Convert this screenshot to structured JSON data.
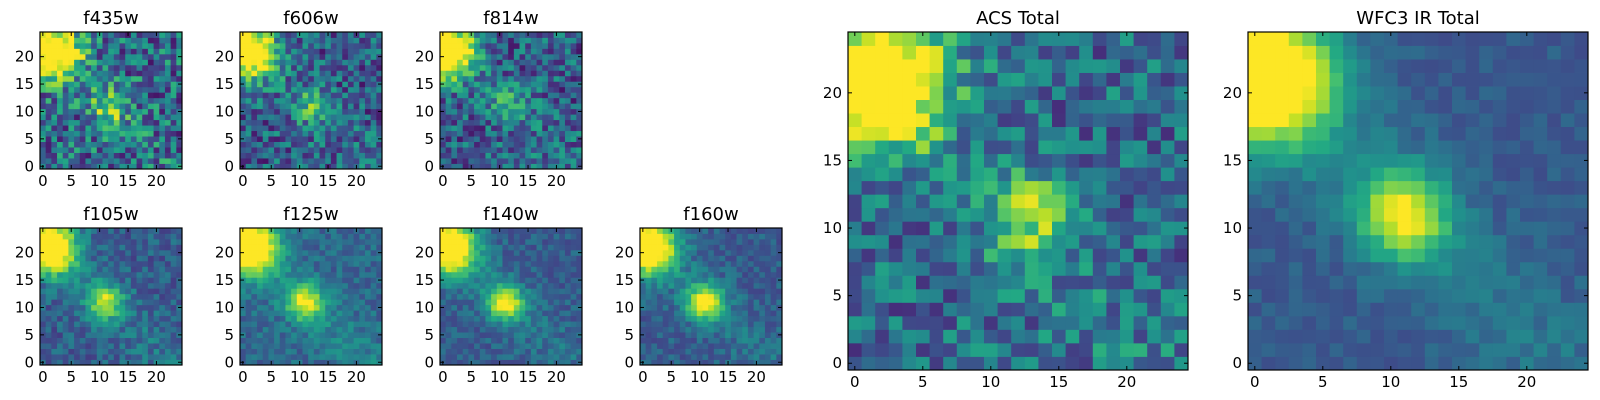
{
  "chart_data": [
    {
      "type": "heatmap",
      "title": "f435w",
      "xticks": [
        "0",
        "5",
        "10",
        "15",
        "20"
      ],
      "yticks": [
        "0",
        "5",
        "10",
        "15",
        "20"
      ],
      "xlim": [
        0,
        24
      ],
      "ylim": [
        0,
        24
      ],
      "bright_spots": [
        {
          "x": 2,
          "y": 21,
          "level": 1.0
        },
        {
          "x": 12,
          "y": 11,
          "level": 0.5
        }
      ],
      "noise": 0.6,
      "floor": 0.35
    },
    {
      "type": "heatmap",
      "title": "f606w",
      "xticks": [
        "0",
        "5",
        "10",
        "15",
        "20"
      ],
      "yticks": [
        "0",
        "5",
        "10",
        "15",
        "20"
      ],
      "xlim": [
        0,
        24
      ],
      "ylim": [
        0,
        24
      ],
      "bright_spots": [
        {
          "x": 1,
          "y": 21,
          "level": 1.0
        },
        {
          "x": 12,
          "y": 11,
          "level": 0.3
        }
      ],
      "noise": 0.5,
      "floor": 0.3
    },
    {
      "type": "heatmap",
      "title": "f814w",
      "xticks": [
        "0",
        "5",
        "10",
        "15",
        "20"
      ],
      "yticks": [
        "0",
        "5",
        "10",
        "15",
        "20"
      ],
      "xlim": [
        0,
        24
      ],
      "ylim": [
        0,
        24
      ],
      "bright_spots": [
        {
          "x": 1,
          "y": 21,
          "level": 1.0
        },
        {
          "x": 12,
          "y": 11,
          "level": 0.3
        }
      ],
      "noise": 0.5,
      "floor": 0.3
    },
    {
      "type": "heatmap",
      "title": "f105w",
      "xticks": [
        "0",
        "5",
        "10",
        "15",
        "20"
      ],
      "yticks": [
        "0",
        "5",
        "10",
        "15",
        "20"
      ],
      "xlim": [
        0,
        24
      ],
      "ylim": [
        0,
        24
      ],
      "bright_spots": [
        {
          "x": 1,
          "y": 21,
          "level": 1.0
        },
        {
          "x": 11,
          "y": 11,
          "level": 0.55
        }
      ],
      "noise": 0.25,
      "floor": 0.3
    },
    {
      "type": "heatmap",
      "title": "f125w",
      "xticks": [
        "0",
        "5",
        "10",
        "15",
        "20"
      ],
      "yticks": [
        "0",
        "5",
        "10",
        "15",
        "20"
      ],
      "xlim": [
        0,
        24
      ],
      "ylim": [
        0,
        24
      ],
      "bright_spots": [
        {
          "x": 1,
          "y": 21,
          "level": 1.0
        },
        {
          "x": 11,
          "y": 11,
          "level": 0.6
        }
      ],
      "noise": 0.2,
      "floor": 0.35
    },
    {
      "type": "heatmap",
      "title": "f140w",
      "xticks": [
        "0",
        "5",
        "10",
        "15",
        "20"
      ],
      "yticks": [
        "0",
        "5",
        "10",
        "15",
        "20"
      ],
      "xlim": [
        0,
        24
      ],
      "ylim": [
        0,
        24
      ],
      "bright_spots": [
        {
          "x": 1,
          "y": 21,
          "level": 1.0
        },
        {
          "x": 11,
          "y": 11,
          "level": 0.65
        }
      ],
      "noise": 0.2,
      "floor": 0.3
    },
    {
      "type": "heatmap",
      "title": "f160w",
      "xticks": [
        "0",
        "5",
        "10",
        "15",
        "20"
      ],
      "yticks": [
        "0",
        "5",
        "10",
        "15",
        "20"
      ],
      "xlim": [
        0,
        24
      ],
      "ylim": [
        0,
        24
      ],
      "bright_spots": [
        {
          "x": 1,
          "y": 21,
          "level": 1.0
        },
        {
          "x": 11,
          "y": 11,
          "level": 0.7
        }
      ],
      "noise": 0.2,
      "floor": 0.3
    },
    {
      "type": "heatmap",
      "title": "ACS Total",
      "xticks": [
        "0",
        "5",
        "10",
        "15",
        "20"
      ],
      "yticks": [
        "0",
        "5",
        "10",
        "15",
        "20"
      ],
      "xlim": [
        0,
        24
      ],
      "ylim": [
        0,
        24
      ],
      "bright_spots": [
        {
          "x": 2,
          "y": 21,
          "level": 1.0
        },
        {
          "x": 13,
          "y": 11,
          "level": 0.45
        }
      ],
      "noise": 0.45,
      "floor": 0.35
    },
    {
      "type": "heatmap",
      "title": "WFC3 IR Total",
      "xticks": [
        "0",
        "5",
        "10",
        "15",
        "20"
      ],
      "yticks": [
        "0",
        "5",
        "10",
        "15",
        "20"
      ],
      "xlim": [
        0,
        24
      ],
      "ylim": [
        0,
        24
      ],
      "bright_spots": [
        {
          "x": 1,
          "y": 21,
          "level": 1.0
        },
        {
          "x": 11,
          "y": 11,
          "level": 0.65
        }
      ],
      "noise": 0.12,
      "floor": 0.3
    }
  ]
}
